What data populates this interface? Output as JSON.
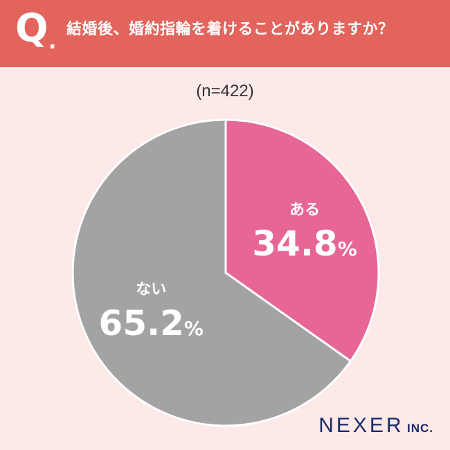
{
  "header": {
    "q_letter": "Q",
    "q_dot": ".",
    "question": "結婚後、婚約指輪を着けることがありますか？"
  },
  "sample_label": "(n=422)",
  "colors": {
    "header_bg": "#e2645c",
    "page_bg": "#fce9e8",
    "yes": "#e86696",
    "no": "#a3a3a3"
  },
  "chart_data": {
    "type": "pie",
    "categories": [
      "ある",
      "ない"
    ],
    "values": [
      34.8,
      65.2
    ],
    "unit": "%",
    "n": 422,
    "title": "結婚後、婚約指輪を着けることがありますか？",
    "labels": [
      {
        "name": "ある",
        "value": "34.8",
        "unit": "%"
      },
      {
        "name": "ない",
        "value": "65.2",
        "unit": "%"
      }
    ]
  },
  "logo": {
    "main": "NEXER",
    "sub": "INC."
  }
}
